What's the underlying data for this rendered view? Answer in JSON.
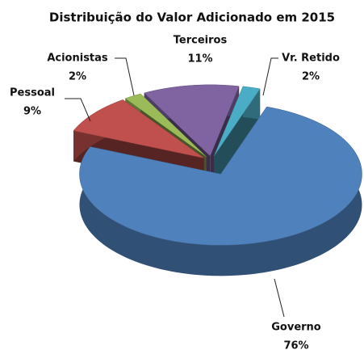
{
  "chart_data": {
    "type": "pie",
    "title": "Distribuição  do Valor Adicionado  em 2015",
    "categories": [
      "Governo",
      "Pessoal",
      "Acionistas",
      "Terceiros",
      "Vr. Retido"
    ],
    "values": [
      76,
      9,
      2,
      11,
      2
    ],
    "value_labels": [
      "76%",
      "9%",
      "2%",
      "11%",
      "2%"
    ],
    "colors": [
      "#4f81bd",
      "#c0504d",
      "#9bbb59",
      "#8064a2",
      "#4bacc6"
    ],
    "three_d": true
  }
}
